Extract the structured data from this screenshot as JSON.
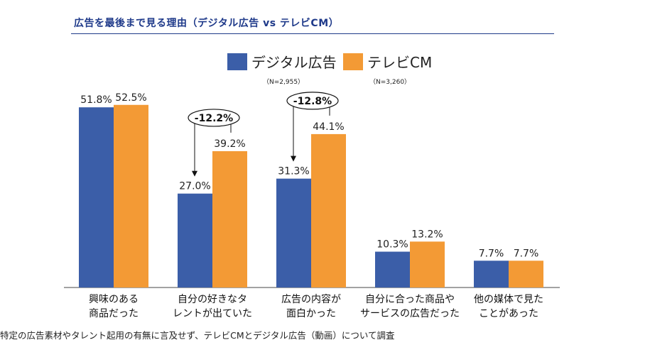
{
  "page": {
    "title": "広告を最後まで見る理由（デジタル広告 vs テレビCM）",
    "footnote": "特定の広告素材やタレント起用の有無に言及せず、テレビCMとデジタル広告（動画）について調査"
  },
  "colors": {
    "digital": "#3b5ea8",
    "tv": "#f39a35",
    "title": "#1f3a8a"
  },
  "legend": [
    {
      "label": "デジタル広告",
      "n": "（N=2,955）"
    },
    {
      "label": "テレビCM",
      "n": "（N=3,260）"
    }
  ],
  "chart_data": {
    "type": "bar",
    "title": "広告を最後まで見る理由（デジタル広告 vs テレビCM）",
    "categories": [
      [
        "興味のある",
        "商品だった"
      ],
      [
        "自分の好きなタ",
        "レントが出ていた"
      ],
      [
        "広告の内容が",
        "面白かった"
      ],
      [
        "自分に合った商品や",
        "サービスの広告だった"
      ],
      [
        "他の媒体で見た",
        "ことがあった"
      ]
    ],
    "series": [
      {
        "name": "デジタル広告",
        "values": [
          51.8,
          27.0,
          31.3,
          10.3,
          7.7
        ],
        "labels": [
          "51.8%",
          "27.0%",
          "31.3%",
          "10.3%",
          "7.7%"
        ]
      },
      {
        "name": "テレビCM",
        "values": [
          52.5,
          39.2,
          44.1,
          13.2,
          7.7
        ],
        "labels": [
          "52.5%",
          "39.2%",
          "44.1%",
          "13.2%",
          "7.7%"
        ]
      }
    ],
    "annotations": [
      {
        "category_index": 1,
        "text": "-12.2%"
      },
      {
        "category_index": 2,
        "text": "-12.8%"
      }
    ],
    "xlabel": "",
    "ylabel": "",
    "ylim": [
      0,
      60
    ],
    "grid": false,
    "legend_position": "top"
  }
}
